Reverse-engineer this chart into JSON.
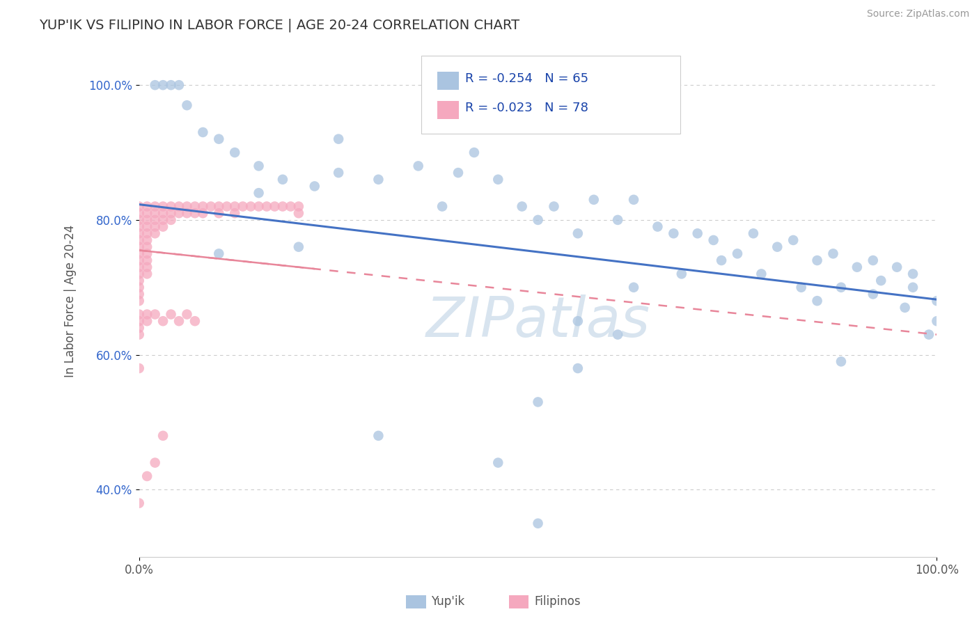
{
  "title": "YUP'IK VS FILIPINO IN LABOR FORCE | AGE 20-24 CORRELATION CHART",
  "source": "Source: ZipAtlas.com",
  "ylabel": "In Labor Force | Age 20-24",
  "xlim": [
    0.0,
    1.0
  ],
  "ylim": [
    0.3,
    1.06
  ],
  "ytick_vals": [
    0.4,
    0.6,
    0.8,
    1.0
  ],
  "ytick_labels": [
    "40.0%",
    "60.0%",
    "80.0%",
    "100.0%"
  ],
  "legend_R_yupik": "R = -0.254",
  "legend_N_yupik": "N = 65",
  "legend_R_filipino": "R = -0.023",
  "legend_N_filipino": "N = 78",
  "color_yupik": "#aac4e0",
  "color_filipino": "#f5a8be",
  "trendline_color_yupik": "#4472c4",
  "trendline_color_filipino": "#e8869a",
  "watermark": "ZIPatlas",
  "background_color": "#ffffff",
  "yupik_x": [
    0.02,
    0.03,
    0.04,
    0.05,
    0.06,
    0.08,
    0.1,
    0.12,
    0.15,
    0.18,
    0.22,
    0.25,
    0.3,
    0.35,
    0.38,
    0.4,
    0.42,
    0.45,
    0.48,
    0.5,
    0.52,
    0.55,
    0.57,
    0.6,
    0.62,
    0.65,
    0.67,
    0.7,
    0.72,
    0.75,
    0.77,
    0.8,
    0.82,
    0.85,
    0.87,
    0.9,
    0.92,
    0.95,
    0.97,
    1.0,
    0.5,
    0.55,
    0.62,
    0.68,
    0.73,
    0.78,
    0.83,
    0.88,
    0.92,
    0.96,
    0.99,
    1.0,
    0.93,
    0.97,
    0.1,
    0.15,
    0.2,
    0.25,
    0.3,
    0.55,
    0.6,
    0.45,
    0.85,
    0.88,
    0.5
  ],
  "yupik_y": [
    1.0,
    1.0,
    1.0,
    1.0,
    0.97,
    0.93,
    0.92,
    0.9,
    0.88,
    0.86,
    0.85,
    0.87,
    0.86,
    0.88,
    0.82,
    0.87,
    0.9,
    0.86,
    0.82,
    0.8,
    0.82,
    0.78,
    0.83,
    0.8,
    0.83,
    0.79,
    0.78,
    0.78,
    0.77,
    0.75,
    0.78,
    0.76,
    0.77,
    0.74,
    0.75,
    0.73,
    0.74,
    0.73,
    0.72,
    0.68,
    0.53,
    0.65,
    0.7,
    0.72,
    0.74,
    0.72,
    0.7,
    0.7,
    0.69,
    0.67,
    0.63,
    0.65,
    0.71,
    0.7,
    0.75,
    0.84,
    0.76,
    0.92,
    0.48,
    0.58,
    0.63,
    0.44,
    0.68,
    0.59,
    0.35
  ],
  "filipino_x": [
    0.0,
    0.0,
    0.0,
    0.0,
    0.0,
    0.0,
    0.0,
    0.0,
    0.0,
    0.0,
    0.0,
    0.0,
    0.0,
    0.0,
    0.0,
    0.01,
    0.01,
    0.01,
    0.01,
    0.01,
    0.01,
    0.01,
    0.01,
    0.01,
    0.01,
    0.01,
    0.02,
    0.02,
    0.02,
    0.02,
    0.02,
    0.03,
    0.03,
    0.03,
    0.03,
    0.04,
    0.04,
    0.04,
    0.05,
    0.05,
    0.06,
    0.06,
    0.07,
    0.07,
    0.08,
    0.08,
    0.09,
    0.1,
    0.1,
    0.11,
    0.12,
    0.12,
    0.13,
    0.14,
    0.15,
    0.16,
    0.17,
    0.18,
    0.19,
    0.2,
    0.2,
    0.0,
    0.0,
    0.0,
    0.0,
    0.01,
    0.01,
    0.02,
    0.03,
    0.04,
    0.05,
    0.06,
    0.07,
    0.0,
    0.0,
    0.01,
    0.02,
    0.03
  ],
  "filipino_y": [
    0.82,
    0.81,
    0.8,
    0.79,
    0.78,
    0.77,
    0.76,
    0.75,
    0.74,
    0.73,
    0.72,
    0.71,
    0.7,
    0.69,
    0.68,
    0.82,
    0.81,
    0.8,
    0.79,
    0.78,
    0.77,
    0.76,
    0.75,
    0.74,
    0.73,
    0.72,
    0.82,
    0.81,
    0.8,
    0.79,
    0.78,
    0.82,
    0.81,
    0.8,
    0.79,
    0.82,
    0.81,
    0.8,
    0.82,
    0.81,
    0.82,
    0.81,
    0.82,
    0.81,
    0.82,
    0.81,
    0.82,
    0.82,
    0.81,
    0.82,
    0.82,
    0.81,
    0.82,
    0.82,
    0.82,
    0.82,
    0.82,
    0.82,
    0.82,
    0.82,
    0.81,
    0.66,
    0.65,
    0.64,
    0.63,
    0.66,
    0.65,
    0.66,
    0.65,
    0.66,
    0.65,
    0.66,
    0.65,
    0.58,
    0.38,
    0.42,
    0.44,
    0.48
  ]
}
